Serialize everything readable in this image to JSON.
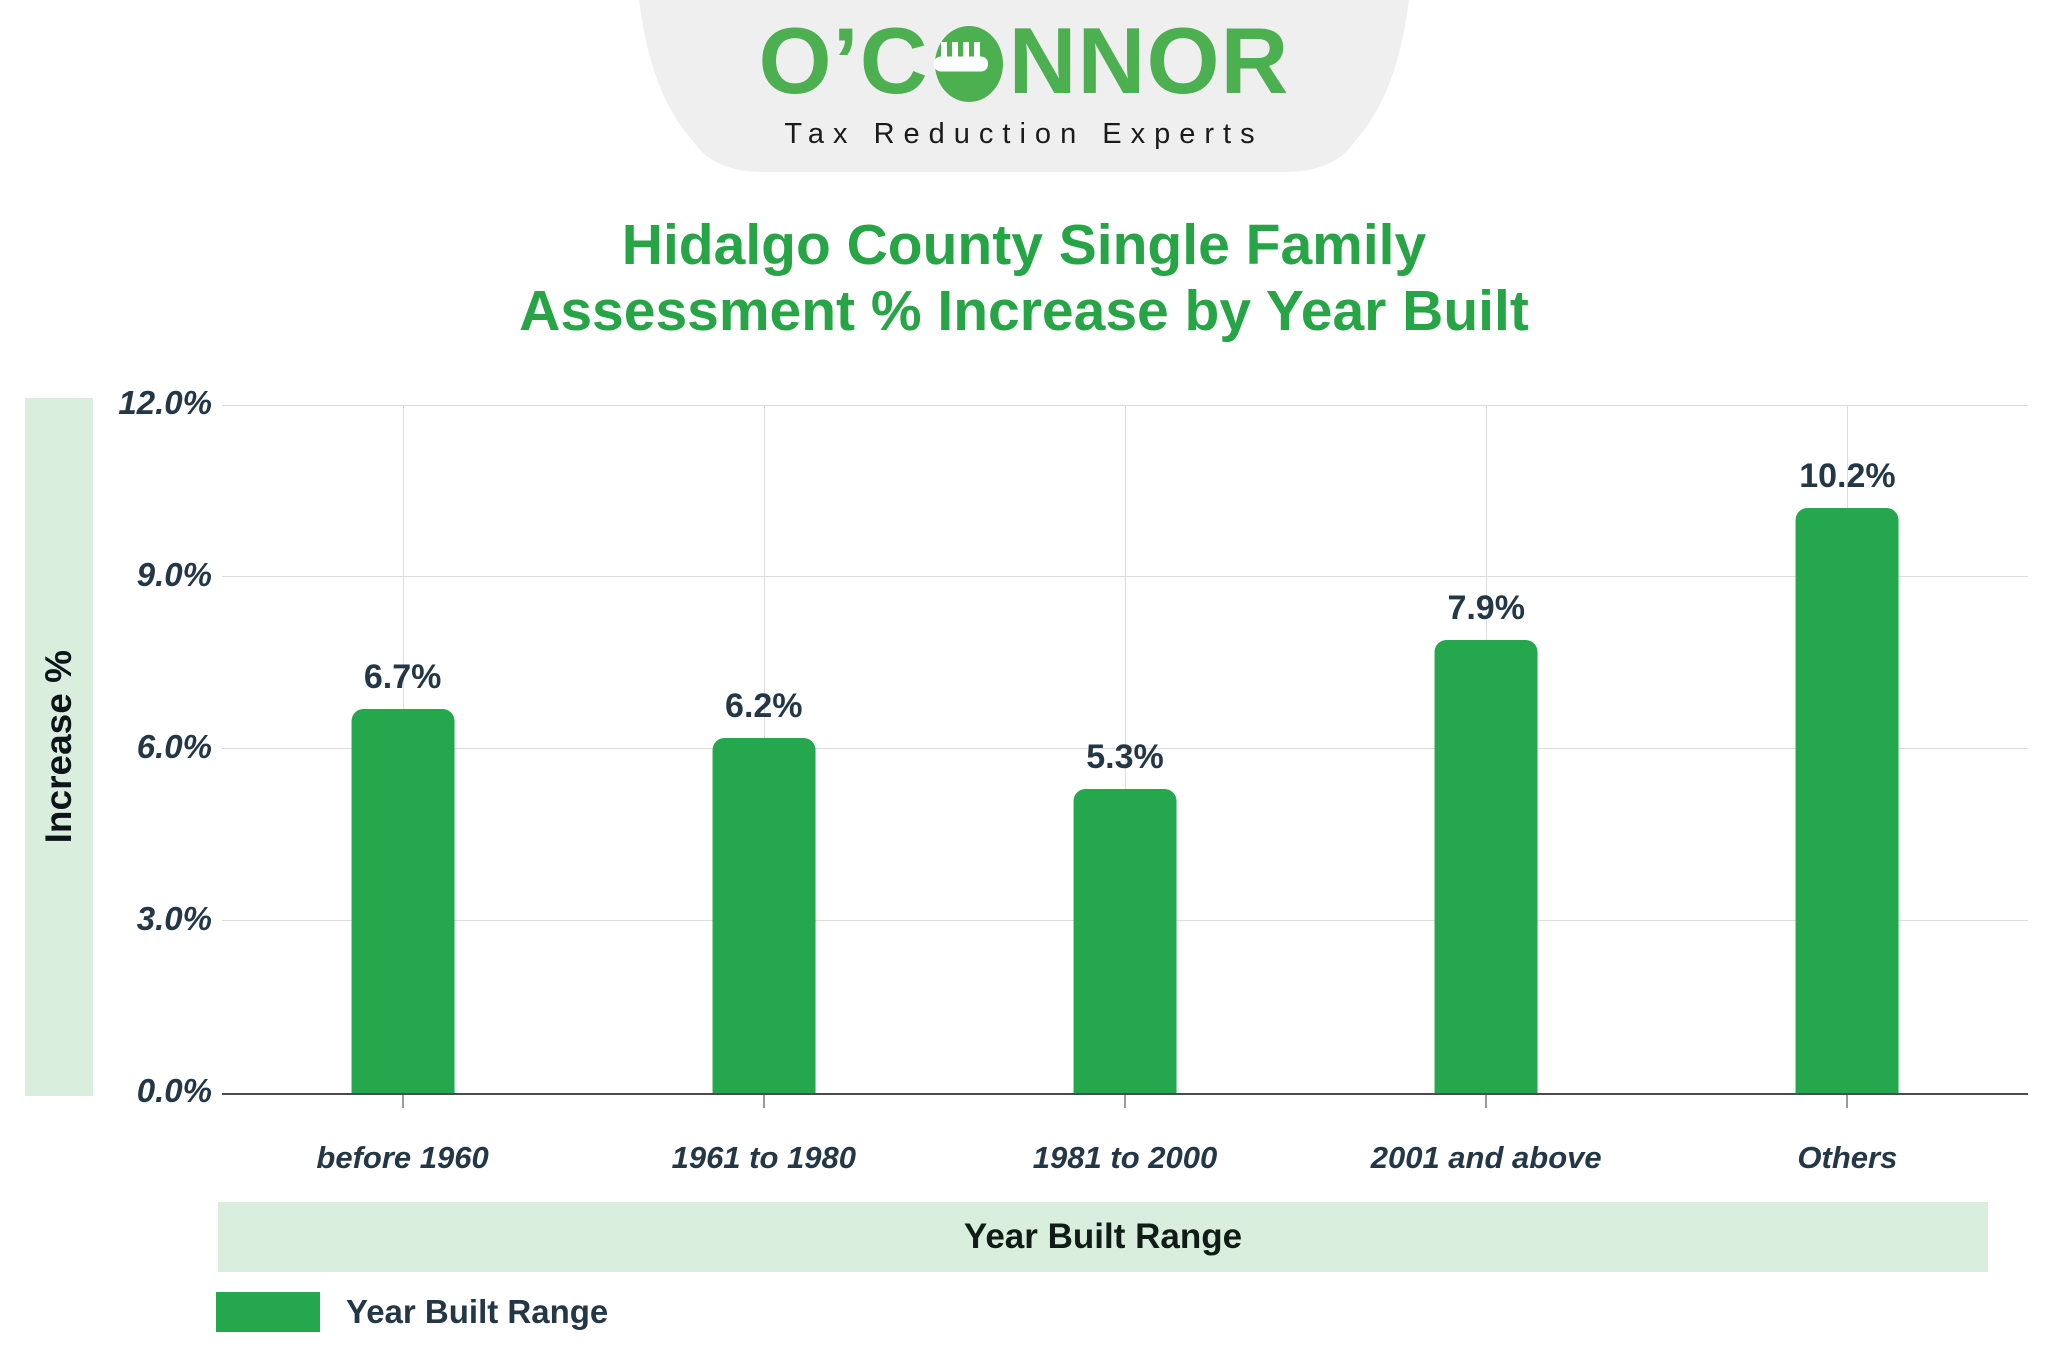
{
  "header": {
    "logo_pre": "O’C",
    "logo_post": "NNOR",
    "tagline": "Tax Reduction Experts"
  },
  "title": {
    "line1": "Hidalgo County Single Family",
    "line2": "Assessment % Increase by Year Built"
  },
  "chart_data": {
    "type": "bar",
    "title": "Hidalgo County Single Family Assessment % Increase by Year Built",
    "categories": [
      "before 1960",
      "1961 to 1980",
      "1981 to 2000",
      "2001 and above",
      "Others"
    ],
    "values": [
      6.7,
      6.2,
      5.3,
      7.9,
      10.2
    ],
    "value_labels": [
      "6.7%",
      "6.2%",
      "5.3%",
      "7.9%",
      "10.2%"
    ],
    "xlabel": "Year Built Range",
    "ylabel": "Increase %",
    "ylim": [
      0,
      12
    ],
    "ytick_values": [
      0,
      3,
      6,
      9,
      12
    ],
    "ytick_labels": [
      "0.0%",
      "3.0%",
      "6.0%",
      "9.0%",
      "12.0%"
    ],
    "grid": true,
    "legend_position": "bottom-left",
    "legend_label": "Year Built Range"
  },
  "colors": {
    "bar_green": "#25A74D",
    "logo_green": "#4CAF50",
    "title_green": "#27A446",
    "band_light_green": "#d9eedd",
    "banner_gray": "#efefef",
    "gridline": "#dcdcdc",
    "dark_text": "#233746"
  }
}
